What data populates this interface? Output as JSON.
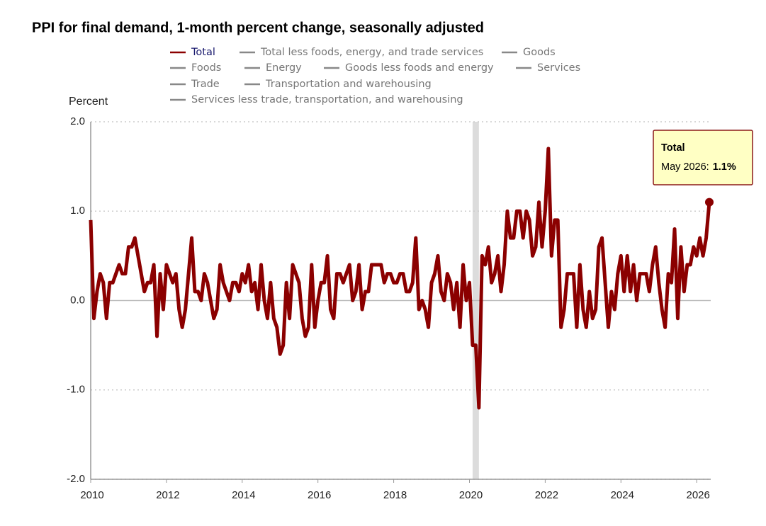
{
  "chart_data": {
    "type": "line",
    "title": "PPI for final demand, 1-month percent change, seasonally adjusted",
    "y_label": "Percent",
    "x": [
      "2010-01",
      "2010-02",
      "2010-03",
      "2010-04",
      "2010-05",
      "2010-06",
      "2010-07",
      "2010-08",
      "2010-09",
      "2010-10",
      "2010-11",
      "2010-12",
      "2011-01",
      "2011-02",
      "2011-03",
      "2011-04",
      "2011-05",
      "2011-06",
      "2011-07",
      "2011-08",
      "2011-09",
      "2011-10",
      "2011-11",
      "2011-12",
      "2012-01",
      "2012-02",
      "2012-03",
      "2012-04",
      "2012-05",
      "2012-06",
      "2012-07",
      "2012-08",
      "2012-09",
      "2012-10",
      "2012-11",
      "2012-12",
      "2013-01",
      "2013-02",
      "2013-03",
      "2013-04",
      "2013-05",
      "2013-06",
      "2013-07",
      "2013-08",
      "2013-09",
      "2013-10",
      "2013-11",
      "2013-12",
      "2014-01",
      "2014-02",
      "2014-03",
      "2014-04",
      "2014-05",
      "2014-06",
      "2014-07",
      "2014-08",
      "2014-09",
      "2014-10",
      "2014-11",
      "2014-12",
      "2015-01",
      "2015-02",
      "2015-03",
      "2015-04",
      "2015-05",
      "2015-06",
      "2015-07",
      "2015-08",
      "2015-09",
      "2015-10",
      "2015-11",
      "2015-12",
      "2016-01",
      "2016-02",
      "2016-03",
      "2016-04",
      "2016-05",
      "2016-06",
      "2016-07",
      "2016-08",
      "2016-09",
      "2016-10",
      "2016-11",
      "2016-12",
      "2017-01",
      "2017-02",
      "2017-03",
      "2017-04",
      "2017-05",
      "2017-06",
      "2017-07",
      "2017-08",
      "2017-09",
      "2017-10",
      "2017-11",
      "2017-12",
      "2018-01",
      "2018-02",
      "2018-03",
      "2018-04",
      "2018-05",
      "2018-06",
      "2018-07",
      "2018-08",
      "2018-09",
      "2018-10",
      "2018-11",
      "2018-12",
      "2019-01",
      "2019-02",
      "2019-03",
      "2019-04",
      "2019-05",
      "2019-06",
      "2019-07",
      "2019-08",
      "2019-09",
      "2019-10",
      "2019-11",
      "2019-12",
      "2020-01",
      "2020-02",
      "2020-03",
      "2020-04",
      "2020-05",
      "2020-06",
      "2020-07",
      "2020-08",
      "2020-09",
      "2020-10",
      "2020-11",
      "2020-12",
      "2021-01",
      "2021-02",
      "2021-03",
      "2021-04",
      "2021-05",
      "2021-06",
      "2021-07",
      "2021-08",
      "2021-09",
      "2021-10",
      "2021-11",
      "2021-12",
      "2022-01",
      "2022-02",
      "2022-03",
      "2022-04",
      "2022-05",
      "2022-06",
      "2022-07",
      "2022-08",
      "2022-09",
      "2022-10",
      "2022-11",
      "2022-12",
      "2023-01",
      "2023-02",
      "2023-03",
      "2023-04",
      "2023-05",
      "2023-06",
      "2023-07",
      "2023-08",
      "2023-09",
      "2023-10",
      "2023-11",
      "2023-12",
      "2024-01",
      "2024-02",
      "2024-03",
      "2024-04",
      "2024-05",
      "2024-06",
      "2024-07",
      "2024-08",
      "2024-09",
      "2024-10",
      "2024-11",
      "2024-12",
      "2025-01",
      "2025-02",
      "2025-03",
      "2025-04",
      "2025-05",
      "2025-06",
      "2025-07",
      "2025-08",
      "2025-09",
      "2025-10",
      "2025-11",
      "2025-12",
      "2026-01",
      "2026-02",
      "2026-03",
      "2026-04",
      "2026-05"
    ],
    "series": [
      {
        "name": "Total",
        "color": "#8b0000",
        "values": [
          0.9,
          -0.2,
          0.1,
          0.3,
          0.2,
          -0.2,
          0.2,
          0.2,
          0.3,
          0.4,
          0.3,
          0.3,
          0.6,
          0.6,
          0.7,
          0.5,
          0.3,
          0.1,
          0.2,
          0.2,
          0.4,
          -0.4,
          0.3,
          -0.1,
          0.4,
          0.3,
          0.2,
          0.3,
          -0.1,
          -0.3,
          -0.1,
          0.3,
          0.7,
          0.1,
          0.1,
          0.0,
          0.3,
          0.2,
          0.0,
          -0.2,
          -0.1,
          0.4,
          0.2,
          0.1,
          0.0,
          0.2,
          0.2,
          0.1,
          0.3,
          0.2,
          0.4,
          0.1,
          0.2,
          -0.1,
          0.4,
          0.0,
          -0.2,
          0.2,
          -0.2,
          -0.3,
          -0.6,
          -0.5,
          0.2,
          -0.2,
          0.4,
          0.3,
          0.2,
          -0.2,
          -0.4,
          -0.3,
          0.4,
          -0.3,
          0.0,
          0.2,
          0.2,
          0.5,
          -0.1,
          -0.2,
          0.3,
          0.3,
          0.2,
          0.3,
          0.4,
          0.0,
          0.1,
          0.4,
          -0.1,
          0.1,
          0.1,
          0.4,
          0.4,
          0.4,
          0.4,
          0.2,
          0.3,
          0.3,
          0.2,
          0.2,
          0.3,
          0.3,
          0.1,
          0.1,
          0.2,
          0.7,
          -0.1,
          0.0,
          -0.1,
          -0.3,
          0.2,
          0.3,
          0.5,
          0.1,
          0.0,
          0.3,
          0.2,
          -0.1,
          0.2,
          -0.3,
          0.4,
          0.0,
          0.2,
          -0.5,
          -0.5,
          -1.2,
          0.5,
          0.4,
          0.6,
          0.2,
          0.3,
          0.5,
          0.1,
          0.4,
          1.0,
          0.7,
          0.7,
          1.0,
          1.0,
          0.7,
          1.0,
          0.9,
          0.5,
          0.6,
          1.1,
          0.6,
          1.0,
          1.7,
          0.5,
          0.9,
          0.9,
          -0.3,
          -0.1,
          0.3,
          0.3,
          0.3,
          -0.3,
          0.4,
          -0.1,
          -0.3,
          0.1,
          -0.2,
          -0.1,
          0.6,
          0.7,
          0.2,
          -0.3,
          0.1,
          -0.1,
          0.3,
          0.5,
          0.1,
          0.5,
          0.1,
          0.4,
          0.0,
          0.3,
          0.3,
          0.3,
          0.1,
          0.4,
          0.6,
          0.2,
          -0.1,
          -0.3,
          0.3,
          0.2,
          0.8,
          -0.2,
          0.6,
          0.1,
          0.4,
          0.4,
          0.6,
          0.5,
          0.7,
          0.5,
          0.7,
          1.1
        ]
      }
    ],
    "inactive_series": [
      {
        "name": "Total less foods, energy, and trade services",
        "color": "#888888"
      },
      {
        "name": "Goods",
        "color": "#888888"
      },
      {
        "name": "Foods",
        "color": "#888888"
      },
      {
        "name": "Energy",
        "color": "#888888"
      },
      {
        "name": "Goods less foods and energy",
        "color": "#888888"
      },
      {
        "name": "Services",
        "color": "#888888"
      },
      {
        "name": "Trade",
        "color": "#888888"
      },
      {
        "name": "Transportation and warehousing",
        "color": "#888888"
      },
      {
        "name": "Services less trade, transportation, and warehousing",
        "color": "#888888"
      }
    ],
    "xlim": [
      "2010-01",
      "2026-05"
    ],
    "xticks": [
      2010,
      2012,
      2014,
      2016,
      2018,
      2020,
      2022,
      2024,
      2026
    ],
    "ylim": [
      -2,
      2
    ],
    "yticks": [
      {
        "value": 2,
        "label": "2.0"
      },
      {
        "value": 1,
        "label": "1.0"
      },
      {
        "value": 0,
        "label": "0.0"
      },
      {
        "value": -1,
        "label": "-1.0"
      },
      {
        "value": -2,
        "label": "-2.0"
      }
    ],
    "shaded_ranges": [
      [
        "2020-02",
        "2020-04"
      ]
    ],
    "grid": true,
    "tooltip": {
      "title": "Total",
      "label": "May 2026:",
      "value_label": "1.1%"
    }
  }
}
